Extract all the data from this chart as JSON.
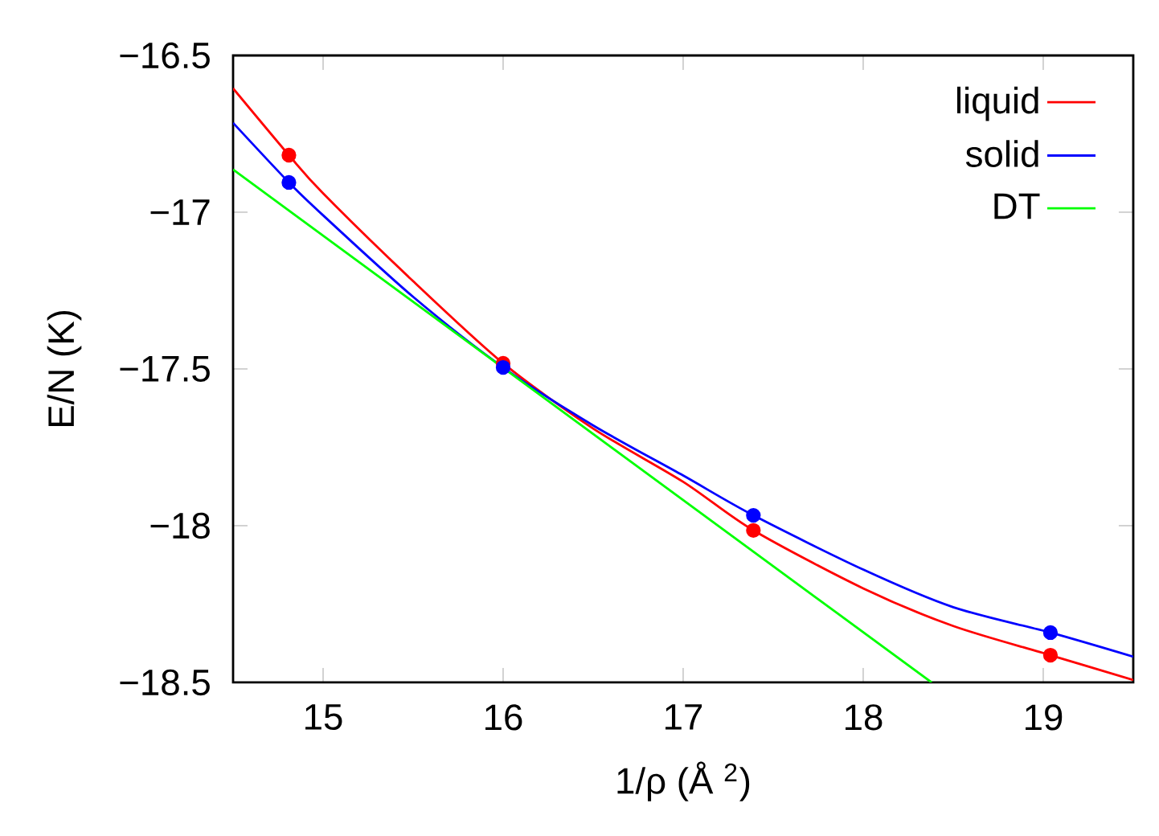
{
  "chart_data": {
    "type": "line",
    "xlabel": "1/ρ (Å $^{2}$)",
    "ylabel": "E/N (K)",
    "xlim": [
      14.5,
      19.5
    ],
    "ylim": [
      -18.5,
      -16.5
    ],
    "xticks": [
      15,
      16,
      17,
      18,
      19
    ],
    "yticks": [
      {
        "value": -18.5,
        "label": "−18.5"
      },
      {
        "value": -18,
        "label": "−18"
      },
      {
        "value": -17.5,
        "label": "−17.5"
      },
      {
        "value": -17,
        "label": "−17"
      },
      {
        "value": -16.5,
        "label": "−16.5"
      }
    ],
    "grid": false,
    "legend": "top right",
    "series": [
      {
        "name": "liquid",
        "color": "#ff0000",
        "type": "line",
        "x": [
          14.5,
          14.81,
          15.0,
          15.5,
          16.0,
          16.5,
          17.0,
          17.39,
          18.0,
          18.5,
          19.04,
          19.5
        ],
        "values": [
          -16.605,
          -16.818,
          -16.94,
          -17.22,
          -17.482,
          -17.69,
          -17.86,
          -18.015,
          -18.2,
          -18.32,
          -18.413,
          -18.492
        ]
      },
      {
        "name": "solid",
        "color": "#0000ff",
        "type": "line",
        "x": [
          14.5,
          14.81,
          15.0,
          15.5,
          16.0,
          16.5,
          17.0,
          17.39,
          18.0,
          18.5,
          19.04,
          19.5
        ],
        "values": [
          -16.715,
          -16.905,
          -17.01,
          -17.27,
          -17.495,
          -17.68,
          -17.84,
          -17.967,
          -18.14,
          -18.26,
          -18.341,
          -18.418
        ]
      },
      {
        "name": "DT",
        "color": "#00ff00",
        "type": "line",
        "x": [
          14.5,
          18.38
        ],
        "values": [
          -16.864,
          -18.5
        ]
      },
      {
        "color": "#ff0000",
        "type": "scatter",
        "marker": "circle",
        "x": [
          14.81,
          16.0,
          17.39,
          19.04
        ],
        "values": [
          -16.818,
          -17.482,
          -18.015,
          -18.413
        ]
      },
      {
        "color": "#0000ff",
        "type": "scatter",
        "marker": "circle",
        "x": [
          14.81,
          16.0,
          17.39,
          19.04
        ],
        "values": [
          -16.905,
          -17.495,
          -17.967,
          -18.341
        ]
      }
    ]
  }
}
